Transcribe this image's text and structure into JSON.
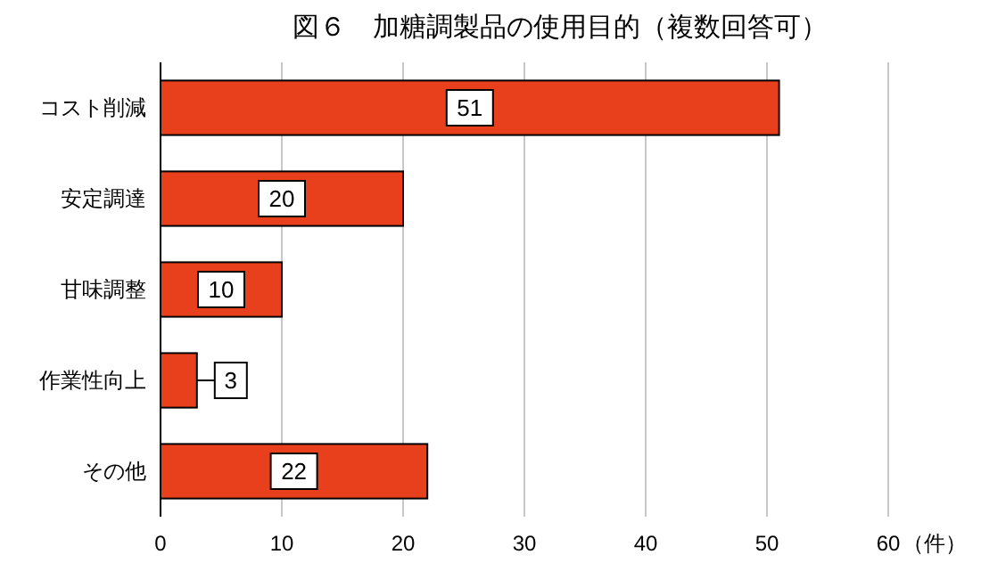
{
  "chart_data": {
    "type": "bar",
    "orientation": "horizontal",
    "title": "図６　加糖調製品の使用目的（複数回答可）",
    "xlabel": "（件）",
    "categories": [
      "コスト削減",
      "安定調達",
      "甘味調整",
      "作業性向上",
      "その他"
    ],
    "values": [
      51,
      20,
      10,
      3,
      22
    ],
    "color": "#e8401c",
    "xlim": [
      0,
      60
    ],
    "xticks": [
      0,
      10,
      20,
      30,
      40,
      50,
      60
    ],
    "grid": "x",
    "data_labels": true
  }
}
